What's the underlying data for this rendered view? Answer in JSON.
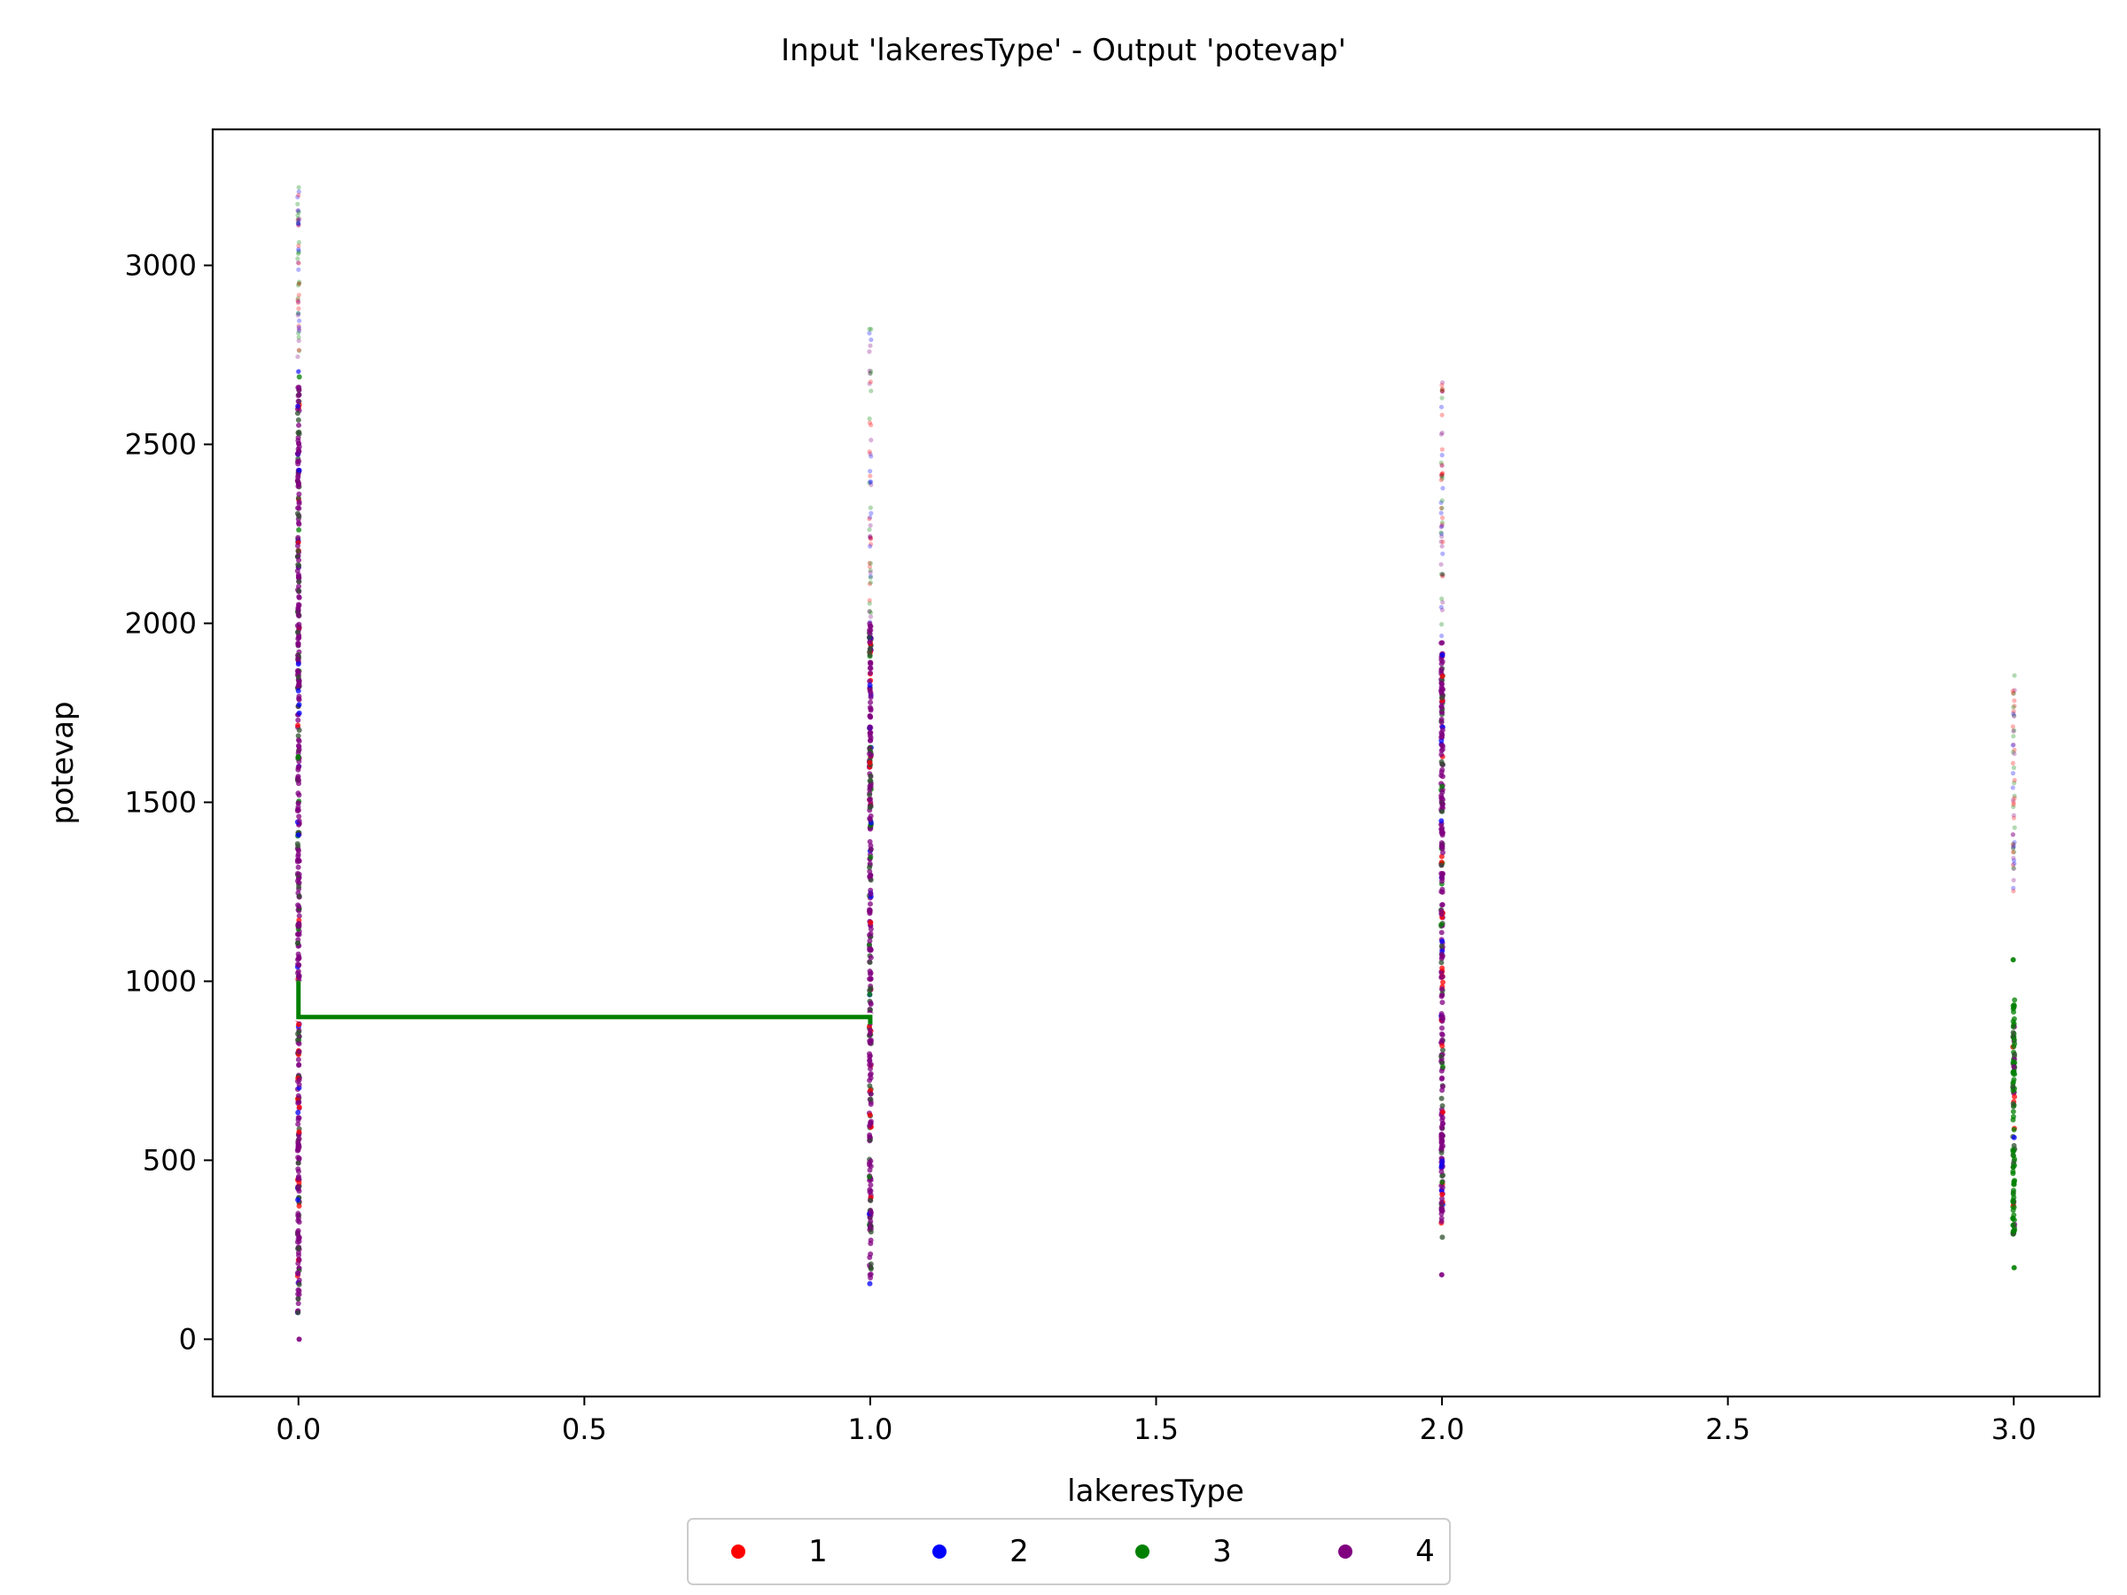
{
  "chart_data": {
    "type": "scatter",
    "title": "Input 'lakeresType' - Output 'potevap'",
    "xlabel": "lakeresType",
    "ylabel": "potevap",
    "xlim": [
      -0.15,
      3.15
    ],
    "ylim": [
      -160,
      3380
    ],
    "xticks": [
      0.0,
      0.5,
      1.0,
      1.5,
      2.0,
      2.5,
      3.0
    ],
    "xtick_labels": [
      "0.0",
      "0.5",
      "1.0",
      "1.5",
      "2.0",
      "2.5",
      "3.0"
    ],
    "yticks": [
      0,
      500,
      1000,
      1500,
      2000,
      2500,
      3000
    ],
    "ytick_labels": [
      "0",
      "500",
      "1000",
      "1500",
      "2000",
      "2500",
      "3000"
    ],
    "grid": false,
    "legend_position": "bottom-center",
    "legend": [
      {
        "label": "1",
        "color": "#ff0000"
      },
      {
        "label": "2",
        "color": "#0000ff"
      },
      {
        "label": "3",
        "color": "#008000"
      },
      {
        "label": "4",
        "color": "#800080"
      }
    ],
    "distributions": [
      {
        "x": 0.0,
        "dense_range": [
          70,
          2700
        ],
        "sparse_range": [
          2700,
          3220
        ],
        "dominant": "4",
        "outliers": [
          0
        ]
      },
      {
        "x": 1.0,
        "dense_range": [
          150,
          2000
        ],
        "sparse_range": [
          2000,
          2850
        ],
        "dominant": "4"
      },
      {
        "x": 2.0,
        "dense_range": [
          280,
          1950
        ],
        "sparse_range": [
          1950,
          2680
        ],
        "dominant": "4",
        "outliers": [
          180
        ]
      },
      {
        "x": 3.0,
        "dense_range": [
          290,
          950
        ],
        "sparse_range": [
          1250,
          1860
        ],
        "dominant": "3",
        "outliers": [
          200,
          1060
        ]
      }
    ],
    "line_series": {
      "name": "3",
      "color": "#008000",
      "points": [
        [
          0.0,
          1000
        ],
        [
          0.0,
          900
        ],
        [
          1.0,
          900
        ],
        [
          1.0,
          880
        ]
      ]
    }
  }
}
